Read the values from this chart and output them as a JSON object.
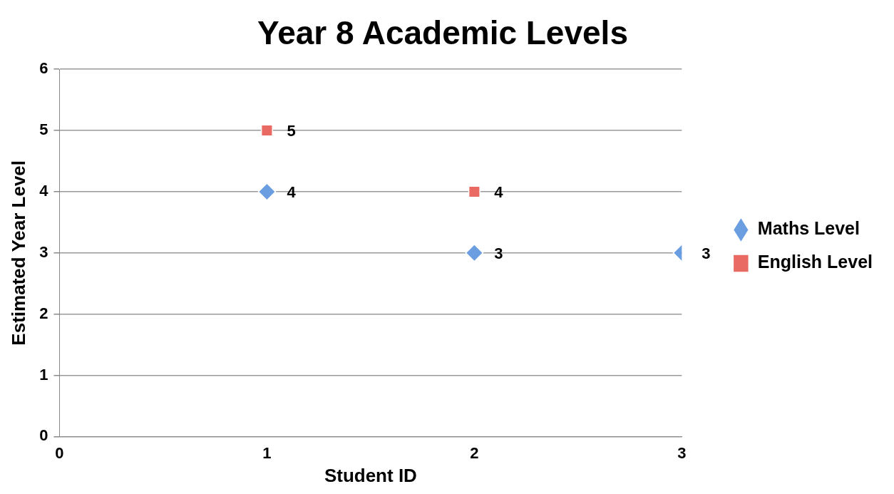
{
  "chart_data": {
    "type": "scatter",
    "title": "Year 8 Academic Levels",
    "xlabel": "Student ID",
    "ylabel": "Estimated Year Level",
    "xlim": [
      0,
      3
    ],
    "xticks": [
      0,
      1,
      2,
      3
    ],
    "ylim": [
      0,
      6
    ],
    "yticks": [
      0,
      1,
      2,
      3,
      4,
      5,
      6
    ],
    "grid": "y",
    "legend": "right",
    "data_labels": true,
    "series": [
      {
        "name": "Maths Level",
        "color": "#6a9ee0",
        "marker": "diamond",
        "x": [
          1,
          2,
          3
        ],
        "values": [
          4,
          3,
          3
        ]
      },
      {
        "name": "English Level",
        "color": "#e86a63",
        "marker": "square",
        "x": [
          1,
          2
        ],
        "values": [
          5,
          4
        ]
      }
    ]
  }
}
